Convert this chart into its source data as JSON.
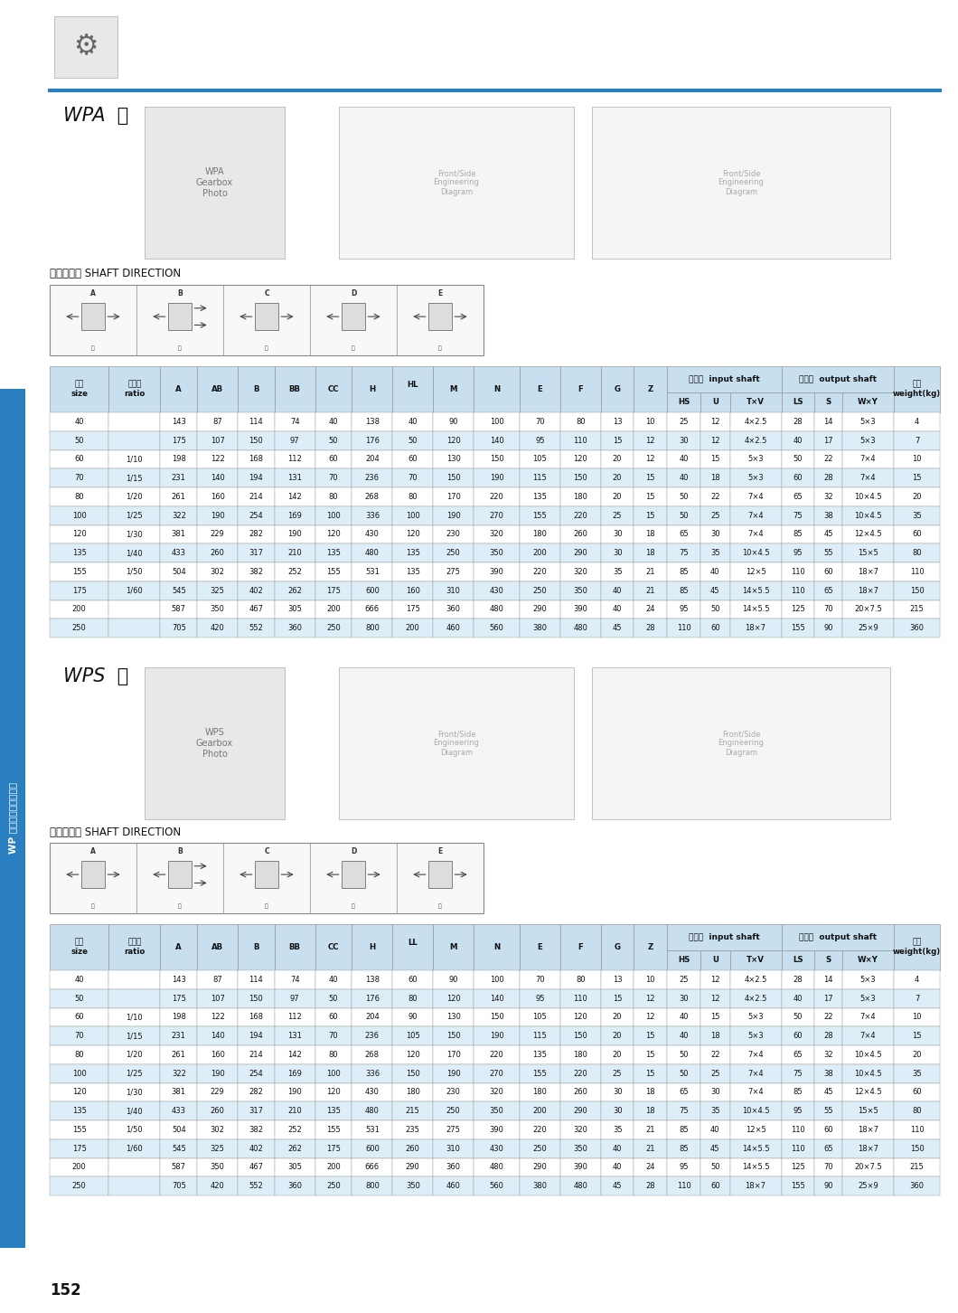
{
  "page_bg": "#ffffff",
  "blue_line_color": "#2a7fc1",
  "table_header_bg": "#c8dff0",
  "table_row_bg1": "#ffffff",
  "table_row_bg2": "#ddeef8",
  "table_border": "#999999",
  "side_bar_bg": "#2a7fc1",
  "side_bar_text": "WP 系列蜗轮蜗杆减速器",
  "page_number": "152",
  "wpa_label": "WPA  型",
  "wps_label": "WPS  型",
  "shaft_dir_label": "轴指向表示 SHAFT DIRECTION",
  "wpa_sub_headers": [
    "HS",
    "U",
    "T×V",
    "LS",
    "S",
    "W×Y"
  ],
  "wps_sub_headers": [
    "HS",
    "U",
    "T×V",
    "LS",
    "S",
    "W×Y"
  ],
  "col_labels": [
    "型号\nsize",
    "减速比\nratio",
    "A",
    "AB",
    "B",
    "BB",
    "CC",
    "H",
    "HL",
    "M",
    "N",
    "E",
    "F",
    "G",
    "Z"
  ],
  "col_labels_wps": [
    "型号\nsize",
    "减速比\nratio",
    "A",
    "AB",
    "B",
    "BB",
    "CC",
    "H",
    "LL",
    "M",
    "N",
    "E",
    "F",
    "G",
    "Z"
  ],
  "wpa_data": [
    [
      "40",
      "",
      "143",
      "87",
      "114",
      "74",
      "40",
      "138",
      "40",
      "90",
      "100",
      "70",
      "80",
      "13",
      "10",
      "25",
      "12",
      "4×2.5",
      "28",
      "14",
      "5×3",
      "4"
    ],
    [
      "50",
      "",
      "175",
      "107",
      "150",
      "97",
      "50",
      "176",
      "50",
      "120",
      "140",
      "95",
      "110",
      "15",
      "12",
      "30",
      "12",
      "4×2.5",
      "40",
      "17",
      "5×3",
      "7"
    ],
    [
      "60",
      "1/10",
      "198",
      "122",
      "168",
      "112",
      "60",
      "204",
      "60",
      "130",
      "150",
      "105",
      "120",
      "20",
      "12",
      "40",
      "15",
      "5×3",
      "50",
      "22",
      "7×4",
      "10"
    ],
    [
      "70",
      "1/15",
      "231",
      "140",
      "194",
      "131",
      "70",
      "236",
      "70",
      "150",
      "190",
      "115",
      "150",
      "20",
      "15",
      "40",
      "18",
      "5×3",
      "60",
      "28",
      "7×4",
      "15"
    ],
    [
      "80",
      "1/20",
      "261",
      "160",
      "214",
      "142",
      "80",
      "268",
      "80",
      "170",
      "220",
      "135",
      "180",
      "20",
      "15",
      "50",
      "22",
      "7×4",
      "65",
      "32",
      "10×4.5",
      "20"
    ],
    [
      "100",
      "1/25",
      "322",
      "190",
      "254",
      "169",
      "100",
      "336",
      "100",
      "190",
      "270",
      "155",
      "220",
      "25",
      "15",
      "50",
      "25",
      "7×4",
      "75",
      "38",
      "10×4.5",
      "35"
    ],
    [
      "120",
      "1/30",
      "381",
      "229",
      "282",
      "190",
      "120",
      "430",
      "120",
      "230",
      "320",
      "180",
      "260",
      "30",
      "18",
      "65",
      "30",
      "7×4",
      "85",
      "45",
      "12×4.5",
      "60"
    ],
    [
      "135",
      "1/40",
      "433",
      "260",
      "317",
      "210",
      "135",
      "480",
      "135",
      "250",
      "350",
      "200",
      "290",
      "30",
      "18",
      "75",
      "35",
      "10×4.5",
      "95",
      "55",
      "15×5",
      "80"
    ],
    [
      "155",
      "1/50",
      "504",
      "302",
      "382",
      "252",
      "155",
      "531",
      "135",
      "275",
      "390",
      "220",
      "320",
      "35",
      "21",
      "85",
      "40",
      "12×5",
      "110",
      "60",
      "18×7",
      "110"
    ],
    [
      "175",
      "1/60",
      "545",
      "325",
      "402",
      "262",
      "175",
      "600",
      "160",
      "310",
      "430",
      "250",
      "350",
      "40",
      "21",
      "85",
      "45",
      "14×5.5",
      "110",
      "65",
      "18×7",
      "150"
    ],
    [
      "200",
      "",
      "587",
      "350",
      "467",
      "305",
      "200",
      "666",
      "175",
      "360",
      "480",
      "290",
      "390",
      "40",
      "24",
      "95",
      "50",
      "14×5.5",
      "125",
      "70",
      "20×7.5",
      "215"
    ],
    [
      "250",
      "",
      "705",
      "420",
      "552",
      "360",
      "250",
      "800",
      "200",
      "460",
      "560",
      "380",
      "480",
      "45",
      "28",
      "110",
      "60",
      "18×7",
      "155",
      "90",
      "25×9",
      "360"
    ]
  ],
  "wps_data": [
    [
      "40",
      "",
      "143",
      "87",
      "114",
      "74",
      "40",
      "138",
      "60",
      "90",
      "100",
      "70",
      "80",
      "13",
      "10",
      "25",
      "12",
      "4×2.5",
      "28",
      "14",
      "5×3",
      "4"
    ],
    [
      "50",
      "",
      "175",
      "107",
      "150",
      "97",
      "50",
      "176",
      "80",
      "120",
      "140",
      "95",
      "110",
      "15",
      "12",
      "30",
      "12",
      "4×2.5",
      "40",
      "17",
      "5×3",
      "7"
    ],
    [
      "60",
      "1/10",
      "198",
      "122",
      "168",
      "112",
      "60",
      "204",
      "90",
      "130",
      "150",
      "105",
      "120",
      "20",
      "12",
      "40",
      "15",
      "5×3",
      "50",
      "22",
      "7×4",
      "10"
    ],
    [
      "70",
      "1/15",
      "231",
      "140",
      "194",
      "131",
      "70",
      "236",
      "105",
      "150",
      "190",
      "115",
      "150",
      "20",
      "15",
      "40",
      "18",
      "5×3",
      "60",
      "28",
      "7×4",
      "15"
    ],
    [
      "80",
      "1/20",
      "261",
      "160",
      "214",
      "142",
      "80",
      "268",
      "120",
      "170",
      "220",
      "135",
      "180",
      "20",
      "15",
      "50",
      "22",
      "7×4",
      "65",
      "32",
      "10×4.5",
      "20"
    ],
    [
      "100",
      "1/25",
      "322",
      "190",
      "254",
      "169",
      "100",
      "336",
      "150",
      "190",
      "270",
      "155",
      "220",
      "25",
      "15",
      "50",
      "25",
      "7×4",
      "75",
      "38",
      "10×4.5",
      "35"
    ],
    [
      "120",
      "1/30",
      "381",
      "229",
      "282",
      "190",
      "120",
      "430",
      "180",
      "230",
      "320",
      "180",
      "260",
      "30",
      "18",
      "65",
      "30",
      "7×4",
      "85",
      "45",
      "12×4.5",
      "60"
    ],
    [
      "135",
      "1/40",
      "433",
      "260",
      "317",
      "210",
      "135",
      "480",
      "215",
      "250",
      "350",
      "200",
      "290",
      "30",
      "18",
      "75",
      "35",
      "10×4.5",
      "95",
      "55",
      "15×5",
      "80"
    ],
    [
      "155",
      "1/50",
      "504",
      "302",
      "382",
      "252",
      "155",
      "531",
      "235",
      "275",
      "390",
      "220",
      "320",
      "35",
      "21",
      "85",
      "40",
      "12×5",
      "110",
      "60",
      "18×7",
      "110"
    ],
    [
      "175",
      "1/60",
      "545",
      "325",
      "402",
      "262",
      "175",
      "600",
      "260",
      "310",
      "430",
      "250",
      "350",
      "40",
      "21",
      "85",
      "45",
      "14×5.5",
      "110",
      "65",
      "18×7",
      "150"
    ],
    [
      "200",
      "",
      "587",
      "350",
      "467",
      "305",
      "200",
      "666",
      "290",
      "360",
      "480",
      "290",
      "390",
      "40",
      "24",
      "95",
      "50",
      "14×5.5",
      "125",
      "70",
      "20×7.5",
      "215"
    ],
    [
      "250",
      "",
      "705",
      "420",
      "552",
      "360",
      "250",
      "800",
      "350",
      "460",
      "560",
      "380",
      "480",
      "45",
      "28",
      "110",
      "60",
      "18×7",
      "155",
      "90",
      "25×9",
      "360"
    ]
  ]
}
